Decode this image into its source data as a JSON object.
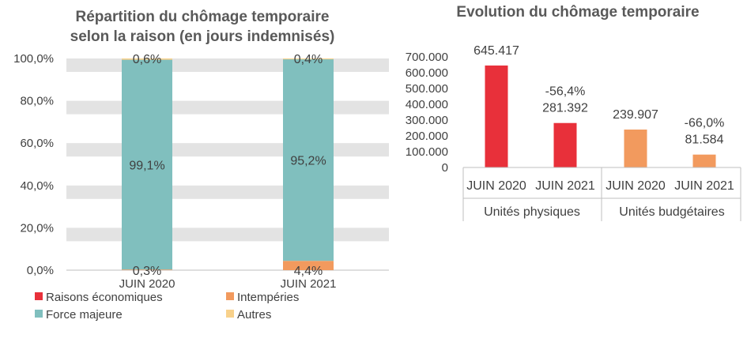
{
  "chart_data": [
    {
      "type": "bar",
      "stacked": true,
      "percent": true,
      "title_line1": "Répartition du chômage temporaire",
      "title_line2": "selon la raison (en jours indemnisés)",
      "categories": [
        "JUIN 2020",
        "JUIN 2021"
      ],
      "ylim": [
        0,
        100
      ],
      "yticks": [
        "0,0%",
        "20,0%",
        "40,0%",
        "60,0%",
        "80,0%",
        "100,0%"
      ],
      "grid": true,
      "legend_position": "bottom",
      "series": [
        {
          "name": "Raisons économiques",
          "color": "#E8303A",
          "values": [
            0,
            0
          ]
        },
        {
          "name": "Intempéries",
          "color": "#F29A5E",
          "values": [
            0.3,
            4.4
          ]
        },
        {
          "name": "Force majeure",
          "color": "#80BFBE",
          "values": [
            99.1,
            95.2
          ]
        },
        {
          "name": "Autres",
          "color": "#F8D18B",
          "values": [
            0.6,
            0.4
          ]
        }
      ],
      "data_labels": [
        {
          "category": 0,
          "series": 1,
          "text": "0,3%"
        },
        {
          "category": 0,
          "series": 2,
          "text": "99,1%"
        },
        {
          "category": 0,
          "series": 3,
          "text": "0,6%"
        },
        {
          "category": 1,
          "series": 1,
          "text": "4,4%"
        },
        {
          "category": 1,
          "series": 2,
          "text": "95,2%"
        },
        {
          "category": 1,
          "series": 3,
          "text": "0,4%"
        }
      ]
    },
    {
      "type": "bar",
      "title": "Evolution du chômage temporaire",
      "ylim": [
        0,
        700000
      ],
      "yticks": [
        "0",
        "100.000",
        "200.000",
        "300.000",
        "400.000",
        "500.000",
        "600.000",
        "700.000"
      ],
      "grid": false,
      "groups": [
        {
          "name": "Unités physiques",
          "categories": [
            "JUIN 2020",
            "JUIN 2021"
          ]
        },
        {
          "name": "Unités budgétaires",
          "categories": [
            "JUIN 2020",
            "JUIN 2021"
          ]
        }
      ],
      "bars": [
        {
          "group": 0,
          "category": "JUIN 2020",
          "value": 645417,
          "label": "645.417",
          "color": "#E8303A"
        },
        {
          "group": 0,
          "category": "JUIN 2021",
          "value": 281392,
          "label": "281.392",
          "change": "-56,4%",
          "color": "#E8303A"
        },
        {
          "group": 1,
          "category": "JUIN 2020",
          "value": 239907,
          "label": "239.907",
          "color": "#F29A5E"
        },
        {
          "group": 1,
          "category": "JUIN 2021",
          "value": 81584,
          "label": "81.584",
          "change": "-66,0%",
          "color": "#F29A5E"
        }
      ]
    }
  ]
}
